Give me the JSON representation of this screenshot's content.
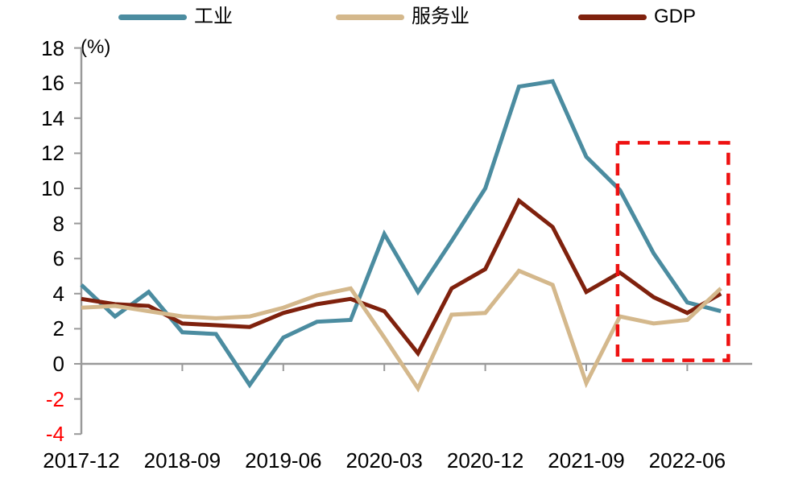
{
  "chart_data": {
    "type": "line",
    "title": "",
    "ylabel": "(%)",
    "x": [
      "2017-12",
      "2018-03",
      "2018-06",
      "2018-09",
      "2018-12",
      "2019-03",
      "2019-06",
      "2019-09",
      "2019-12",
      "2020-03",
      "2020-06",
      "2020-09",
      "2020-12",
      "2021-03",
      "2021-06",
      "2021-09",
      "2021-12",
      "2022-03",
      "2022-06",
      "2022-09"
    ],
    "xtick_indices": [
      0,
      3,
      6,
      9,
      12,
      15,
      18
    ],
    "xtick_labels": [
      "2017-12",
      "2018-09",
      "2019-06",
      "2020-03",
      "2020-12",
      "2021-09",
      "2022-06"
    ],
    "series": [
      {
        "name": "工业",
        "color": "#4B8CA0",
        "values": [
          4.5,
          2.7,
          4.1,
          1.8,
          1.7,
          -1.2,
          1.5,
          2.4,
          2.5,
          7.4,
          4.1,
          7.0,
          10.0,
          15.8,
          16.1,
          11.8,
          9.9,
          6.3,
          3.5,
          3.0
        ]
      },
      {
        "name": "服务业",
        "color": "#D4B88C",
        "values": [
          3.2,
          3.3,
          3.0,
          2.7,
          2.6,
          2.7,
          3.2,
          3.9,
          4.3,
          1.5,
          -1.4,
          2.8,
          2.9,
          5.3,
          4.5,
          -1.1,
          2.7,
          2.3,
          2.5,
          4.3
        ]
      },
      {
        "name": "GDP",
        "color": "#7F210D",
        "values": [
          3.7,
          3.4,
          3.3,
          2.3,
          2.2,
          2.1,
          2.9,
          3.4,
          3.7,
          3.0,
          0.6,
          4.3,
          5.4,
          9.3,
          7.8,
          4.1,
          5.2,
          3.8,
          2.9,
          4.0
        ]
      }
    ],
    "ylim": [
      -4,
      18
    ],
    "yticks": [
      -4,
      -2,
      0,
      2,
      4,
      6,
      8,
      10,
      12,
      14,
      16,
      18
    ],
    "negative_tick_color": "#ff0000",
    "axis_color": "#999999",
    "grid": false,
    "legend_position": "top",
    "highlight_box": {
      "style": "dashed",
      "color": "#ee1111",
      "x_start_index": 15.93,
      "x_end_index": 19.22,
      "y_bottom": 0.2,
      "y_top": 12.6
    }
  }
}
